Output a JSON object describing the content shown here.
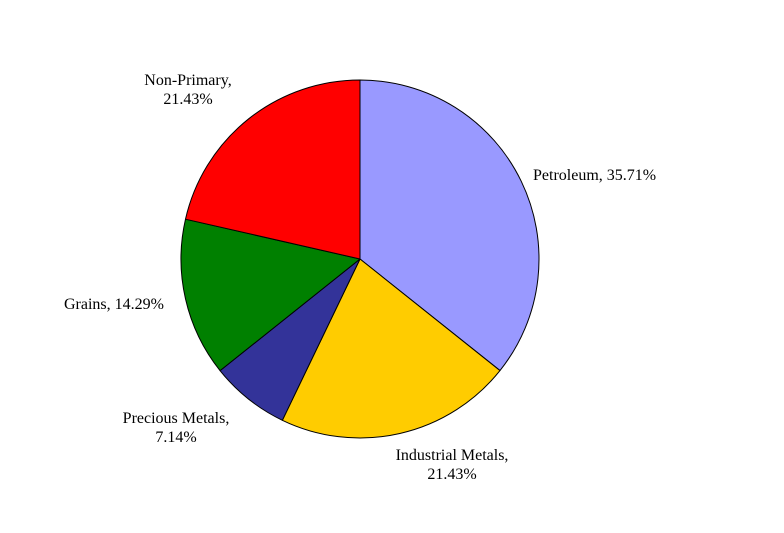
{
  "chart_data": {
    "type": "pie",
    "title": "",
    "start_angle_deg": 0,
    "direction": "clockwise",
    "slice_outline_color": "#000000",
    "slices": [
      {
        "name": "Petroleum",
        "value": 35.71,
        "label_lines": [
          "Petroleum, 35.71%"
        ],
        "color": "#9999FF"
      },
      {
        "name": "Industrial Metals",
        "value": 21.43,
        "label_lines": [
          "Industrial Metals,",
          "21.43%"
        ],
        "color": "#FFCC00"
      },
      {
        "name": "Precious Metals",
        "value": 7.14,
        "label_lines": [
          "Precious Metals,",
          "7.14%"
        ],
        "color": "#333399"
      },
      {
        "name": "Grains",
        "value": 14.29,
        "label_lines": [
          "Grains, 14.29%"
        ],
        "color": "#008000"
      },
      {
        "name": "Non-Primary",
        "value": 21.43,
        "label_lines": [
          "Non-Primary,",
          "21.43%"
        ],
        "color": "#FF0000"
      }
    ]
  }
}
